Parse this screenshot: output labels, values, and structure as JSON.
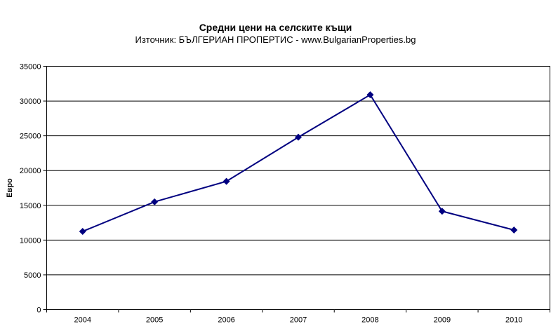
{
  "header": {
    "title": "Средни цени на селските къщи",
    "subtitle": "Източник: БЪЛГЕРИАН ПРОПЕРТИС - www.BulgarianProperties.bg"
  },
  "chart_data": {
    "type": "line",
    "title": "Средни цени на селските къщи",
    "subtitle": "Източник: БЪЛГЕРИАН ПРОПЕРТИС - www.BulgarianProperties.bg",
    "categories": [
      "2004",
      "2005",
      "2006",
      "2007",
      "2008",
      "2009",
      "2010"
    ],
    "values": [
      11250,
      15500,
      18450,
      24800,
      30900,
      14150,
      11450
    ],
    "xlabel": "",
    "ylabel": "Евро",
    "ylim": [
      0,
      35000
    ],
    "yticks": [
      0,
      5000,
      10000,
      15000,
      20000,
      25000,
      30000,
      35000
    ],
    "grid": true,
    "legend": false,
    "marker": "diamond",
    "colors": {
      "line": "#000080",
      "marker": "#000080",
      "gridline": "#000000",
      "axis": "#000000",
      "plot_background": "#ffffff",
      "page_background": "#ffffff",
      "text": "#000000"
    }
  }
}
